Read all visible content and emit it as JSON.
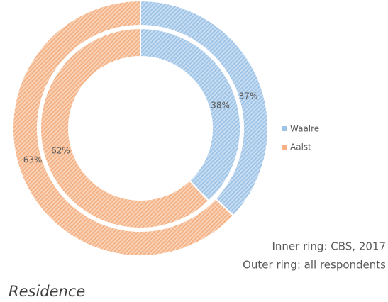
{
  "chart_data": {
    "type": "donut",
    "title": "Residence",
    "categories": [
      "Waalre",
      "Aalst"
    ],
    "colors": [
      "#9dc3e6",
      "#f4b183"
    ],
    "rings": [
      {
        "values": [
          38,
          62
        ],
        "value_labels": [
          "38%",
          "62%"
        ]
      },
      {
        "values": [
          37,
          63
        ],
        "value_labels": [
          "37%",
          "63%"
        ]
      }
    ],
    "annotations": [
      "Inner ring: CBS, 2017",
      "Outer ring: all respondents"
    ],
    "legend": "right"
  }
}
